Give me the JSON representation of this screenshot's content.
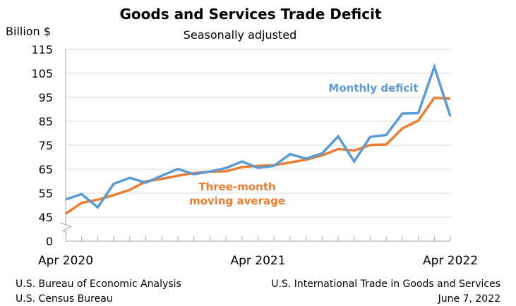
{
  "chart_data": {
    "type": "line",
    "title": "Goods and Services Trade Deficit",
    "subtitle": "Seasonally adjusted",
    "ylabel": "Billion $",
    "ylim": [
      45,
      115
    ],
    "broken_axis_zero": "0",
    "yticks": [
      "115",
      "105",
      "95",
      "85",
      "75",
      "65",
      "55",
      "45"
    ],
    "xtick_labels": [
      "Apr 2020",
      "Apr 2021",
      "Apr 2022"
    ],
    "x": [
      "Apr 2020",
      "May 2020",
      "Jun 2020",
      "Jul 2020",
      "Aug 2020",
      "Sep 2020",
      "Oct 2020",
      "Nov 2020",
      "Dec 2020",
      "Jan 2021",
      "Feb 2021",
      "Mar 2021",
      "Apr 2021",
      "May 2021",
      "Jun 2021",
      "Jul 2021",
      "Aug 2021",
      "Sep 2021",
      "Oct 2021",
      "Nov 2021",
      "Dec 2021",
      "Jan 2022",
      "Feb 2022",
      "Mar 2022",
      "Apr 2022"
    ],
    "grid": true,
    "series": [
      {
        "name": "Monthly deficit",
        "color": "#5b9bd5",
        "values": [
          52.4,
          54.6,
          49.1,
          58.9,
          61.4,
          59.4,
          62.3,
          65.1,
          62.9,
          64.0,
          65.5,
          68.2,
          65.6,
          66.4,
          71.3,
          69.4,
          71.6,
          78.7,
          68.2,
          78.5,
          79.3,
          88.2,
          88.4,
          107.7,
          87.1
        ]
      },
      {
        "name": "Three-month moving average",
        "label_lines": [
          "Three-month",
          "moving average"
        ],
        "color": "#ed7d31",
        "values": [
          46.4,
          51.0,
          52.3,
          54.2,
          56.4,
          59.9,
          61.0,
          62.3,
          63.4,
          64.0,
          64.1,
          65.9,
          66.4,
          66.7,
          67.8,
          69.0,
          70.8,
          73.4,
          72.8,
          75.1,
          75.3,
          82.0,
          85.3,
          94.8,
          94.4
        ]
      }
    ]
  },
  "footer": {
    "left": [
      "U.S. Bureau of Economic Analysis",
      "U.S. Census Bureau"
    ],
    "right": [
      "U.S. International Trade in Goods and Services",
      "June 7, 2022"
    ]
  }
}
